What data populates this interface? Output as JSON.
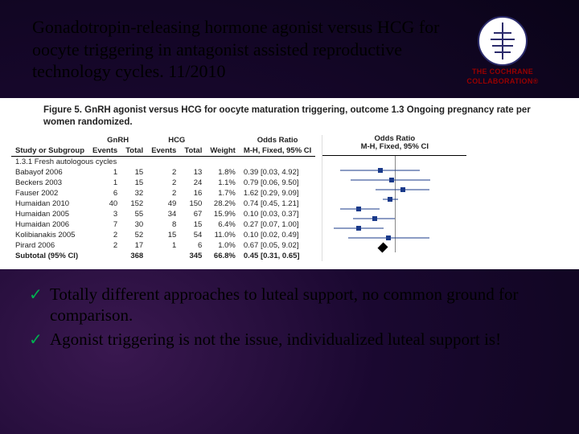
{
  "title": "Gonadotropin-releasing hormone agonist versus HCG for oocyte triggering in antagonist assisted reproductive technology cycles. 11/2010",
  "logo": {
    "line1": "THE COCHRANE",
    "line2": "COLLABORATION®"
  },
  "figure": {
    "caption": "Figure 5. GnRH agonist versus HCG for oocyte maturation triggering, outcome 1.3 Ongoing pregnancy rate per women randomized.",
    "group_header1": "GnRH",
    "group_header2": "HCG",
    "col_events": "Events",
    "col_total": "Total",
    "col_weight": "Weight",
    "col_or": "Odds Ratio",
    "col_or_sub": "M-H, Fixed, 95% CI",
    "subgroup": "1.3.1 Fresh autologous cycles",
    "rows": [
      {
        "study": "Babayof 2006",
        "e1": "1",
        "t1": "15",
        "e2": "2",
        "t2": "13",
        "w": "1.8%",
        "or": "0.39 [0.03, 4.92]",
        "pt": 0.39,
        "lo": 0.03,
        "hi": 4.92
      },
      {
        "study": "Beckers 2003",
        "e1": "1",
        "t1": "15",
        "e2": "2",
        "t2": "24",
        "w": "1.1%",
        "or": "0.79 [0.06, 9.50]",
        "pt": 0.79,
        "lo": 0.06,
        "hi": 9.5
      },
      {
        "study": "Fauser 2002",
        "e1": "6",
        "t1": "32",
        "e2": "2",
        "t2": "16",
        "w": "1.7%",
        "or": "1.62 [0.29, 9.09]",
        "pt": 1.62,
        "lo": 0.29,
        "hi": 9.09
      },
      {
        "study": "Humaidan 2010",
        "e1": "40",
        "t1": "152",
        "e2": "49",
        "t2": "150",
        "w": "28.2%",
        "or": "0.74 [0.45, 1.21]",
        "pt": 0.74,
        "lo": 0.45,
        "hi": 1.21
      },
      {
        "study": "Humaidan 2005",
        "e1": "3",
        "t1": "55",
        "e2": "34",
        "t2": "67",
        "w": "15.9%",
        "or": "0.10 [0.03, 0.37]",
        "pt": 0.1,
        "lo": 0.03,
        "hi": 0.37
      },
      {
        "study": "Humaidan 2006",
        "e1": "7",
        "t1": "30",
        "e2": "8",
        "t2": "15",
        "w": "6.4%",
        "or": "0.27 [0.07, 1.00]",
        "pt": 0.27,
        "lo": 0.07,
        "hi": 1.0
      },
      {
        "study": "Kolibianakis 2005",
        "e1": "2",
        "t1": "52",
        "e2": "15",
        "t2": "54",
        "w": "11.0%",
        "or": "0.10 [0.02, 0.49]",
        "pt": 0.1,
        "lo": 0.02,
        "hi": 0.49
      },
      {
        "study": "Pirard 2006",
        "e1": "2",
        "t1": "17",
        "e2": "1",
        "t2": "6",
        "w": "1.0%",
        "or": "0.67 [0.05, 9.02]",
        "pt": 0.67,
        "lo": 0.05,
        "hi": 9.02
      }
    ],
    "subtotal": {
      "label": "Subtotal (95% CI)",
      "t1": "368",
      "t2": "345",
      "w": "66.8%",
      "or": "0.45 [0.31, 0.65]",
      "pt": 0.45
    },
    "plot": {
      "xmin": 0.01,
      "xmax": 100,
      "null_line": 1
    }
  },
  "bullets": {
    "b1": "Totally different approaches to luteal support, no common ground for comparison.",
    "b2": "Agonist triggering is not the issue, individualized luteal support is!"
  },
  "colors": {
    "ci": "#1a3a8a",
    "check": "#00b050",
    "logo_text": "#990000"
  }
}
